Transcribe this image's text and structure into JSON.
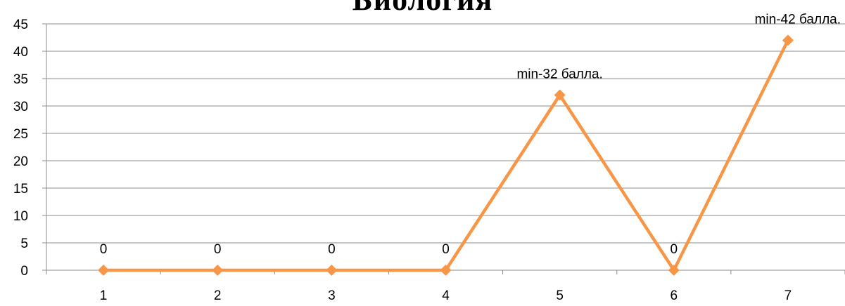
{
  "chart_data": {
    "type": "line",
    "title": "Биология",
    "categories": [
      "1",
      "2",
      "3",
      "4",
      "5",
      "6",
      "7"
    ],
    "series": [
      {
        "values": [
          0,
          0,
          0,
          0,
          32,
          0,
          42
        ]
      }
    ],
    "data_labels": [
      "0",
      "0",
      "0",
      "0",
      "min-32 балла.",
      "0",
      "min-42 балла."
    ],
    "ylim": [
      0,
      45
    ],
    "yticks": [
      "0",
      "5",
      "10",
      "15",
      "20",
      "25",
      "30",
      "35",
      "40",
      "45"
    ],
    "grid": true,
    "legend": "none",
    "line_color": "#F79646",
    "grid_color": "#8C8C8C"
  }
}
